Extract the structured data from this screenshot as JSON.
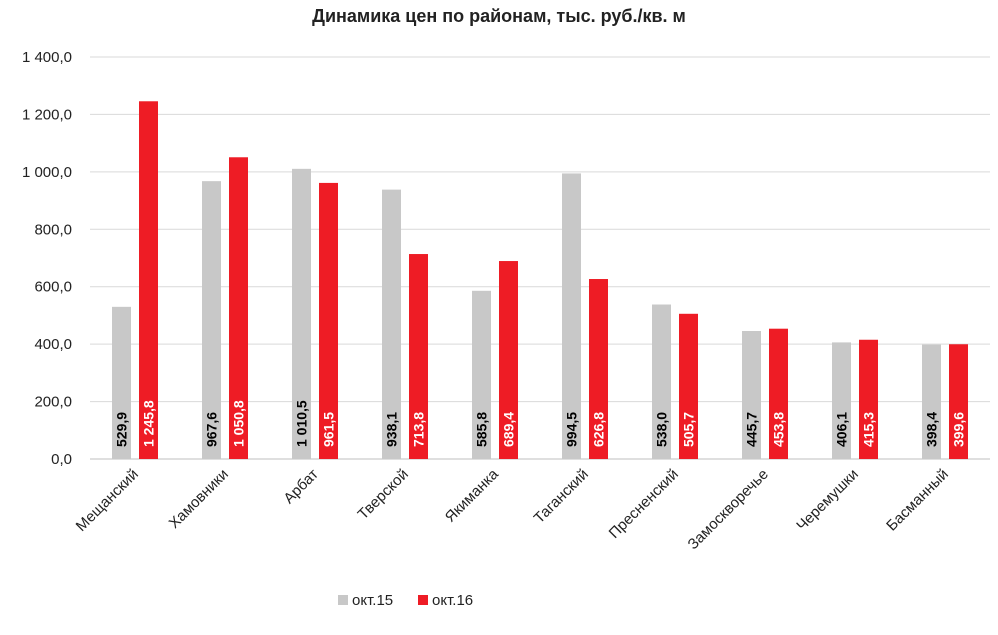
{
  "chart_data": {
    "type": "bar",
    "title": "Динамика цен по районам, тыс. руб./кв. м",
    "categories": [
      "Мещанский",
      "Хамовники",
      "Арбат",
      "Тверской",
      "Якиманка",
      "Таганский",
      "Пресненский",
      "Замоскворечье",
      "Черемушки",
      "Басманный"
    ],
    "series": [
      {
        "name": "окт.15",
        "color": "#c8c8c8",
        "label_color": "#000000",
        "values": [
          529.9,
          967.6,
          1010.5,
          938.1,
          585.8,
          994.5,
          538.0,
          445.7,
          406.1,
          398.4
        ],
        "labels": [
          "529,9",
          "967,6",
          "1 010,5",
          "938,1",
          "585,8",
          "994,5",
          "538,0",
          "445,7",
          "406,1",
          "398,4"
        ]
      },
      {
        "name": "окт.16",
        "color": "#ee1c25",
        "label_color": "#ffffff",
        "values": [
          1245.8,
          1050.8,
          961.5,
          713.8,
          689.4,
          626.8,
          505.7,
          453.8,
          415.3,
          399.6
        ],
        "labels": [
          "1 245,8",
          "1 050,8",
          "961,5",
          "713,8",
          "689,4",
          "626,8",
          "505,7",
          "453,8",
          "415,3",
          "399,6"
        ]
      }
    ],
    "ylim": [
      0,
      1400
    ],
    "yticks": [
      0,
      200,
      400,
      600,
      800,
      1000,
      1200,
      1400
    ],
    "ytick_labels": [
      "0,0",
      "200,0",
      "400,0",
      "600,0",
      "800,0",
      "1 000,0",
      "1 200,0",
      "1 400,0"
    ],
    "grid": true,
    "legend_position": "bottom",
    "xlabel": "",
    "ylabel": ""
  }
}
